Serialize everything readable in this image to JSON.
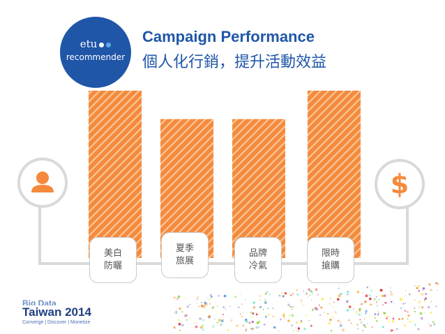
{
  "logo": {
    "top": "etu",
    "bottom": "recommender"
  },
  "header": {
    "title": "Campaign Performance",
    "subtitle": "個人化行銷，提升活動效益"
  },
  "icons": {
    "left": "person-icon",
    "right": "dollar-icon"
  },
  "colors": {
    "brand": "#1f56a8",
    "bar": "#f58a3c",
    "bar_stripe": "#fbc79a",
    "connector": "#d9d9d9"
  },
  "chart_data": {
    "type": "bar",
    "categories": [
      "美白\n防曬",
      "夏季\n旅展",
      "品牌\n冷氣",
      "限時\n搶購"
    ],
    "category_lines": [
      [
        "美白",
        "防曬"
      ],
      [
        "夏季",
        "旅展"
      ],
      [
        "品牌",
        "冷氣"
      ],
      [
        "限時",
        "搶購"
      ]
    ],
    "values": [
      100,
      83,
      83,
      100
    ],
    "ylim": [
      0,
      100
    ]
  },
  "event": {
    "top": "Big Data",
    "main": "Taiwan 2014",
    "tagline": "Converge | Discover | Monetize"
  }
}
